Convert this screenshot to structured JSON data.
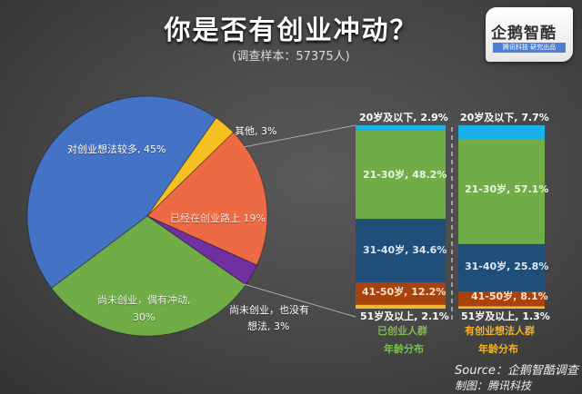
{
  "header": {
    "title": "你是否有创业冲动？",
    "subtitle": "(调查样本：57375人)"
  },
  "logo": {
    "name": "企鹅智酷",
    "tagline": "腾讯科技 研究出品"
  },
  "footer": {
    "source": "Source：企鹅智酷调查",
    "made_by": "制图：腾讯科技"
  },
  "colors": {
    "blue": "#4472c4",
    "green": "#70ad47",
    "orange": "#ed6b44",
    "purple": "#7030a0",
    "yellow": "#f5c021",
    "cyan": "#1ab0ea",
    "dark_blue": "#1f4e79",
    "brown": "#a8420f",
    "gold": "#f2b630",
    "label_green": "#7cbf4a",
    "label_gold": "#f5b41f"
  },
  "chart_data": [
    {
      "type": "pie",
      "title": "你是否有创业冲动？",
      "subtitle": "(调查样本：57375人)",
      "labels": [
        "对创业想法较多",
        "其他",
        "已经在创业路上",
        "尚未创业，也没有想法",
        "尚未创业，偶有冲动"
      ],
      "values": [
        45,
        3,
        19,
        3,
        30
      ],
      "unit": "%",
      "display_labels": [
        "对创业想法较多, 45%",
        "其他, 3%",
        "已经在创业路上 19%",
        "尚未创业，也没有想法, 3%",
        "尚未创业，偶有冲动，30%"
      ]
    },
    {
      "type": "bar",
      "stacked": true,
      "title": "已创业人群年龄分布",
      "categories": [
        "20岁及以下",
        "21-30岁",
        "31-40岁",
        "41-50岁",
        "51岁及以上"
      ],
      "values": [
        2.9,
        48.2,
        34.6,
        12.2,
        2.1
      ],
      "unit": "%",
      "display_labels": [
        "20岁及以下, 2.9%",
        "21-30岁, 48.2%",
        "31-40岁, 34.6%",
        "41-50岁, 12.2%",
        "51岁及以上, 2.1%"
      ],
      "caption": [
        "已创业人群",
        "年龄分布"
      ]
    },
    {
      "type": "bar",
      "stacked": true,
      "title": "有创业想法人群年龄分布",
      "categories": [
        "20岁及以下",
        "21-30岁",
        "31-40岁",
        "41-50岁",
        "51岁及以上"
      ],
      "values": [
        7.7,
        57.1,
        25.8,
        8.1,
        1.3
      ],
      "unit": "%",
      "display_labels": [
        "20岁及以下, 7.7%",
        "21-30岁, 57.1%",
        "31-40岁, 25.8%",
        "41-50岁, 8.1%",
        "51岁及以上, 1.3%"
      ],
      "caption": [
        "有创业想法人群",
        "年龄分布"
      ]
    }
  ]
}
